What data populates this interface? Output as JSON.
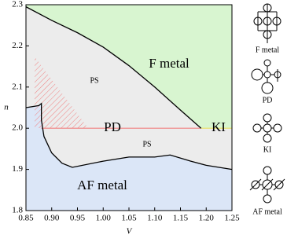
{
  "chart_data": {
    "type": "phase",
    "x_label": "V",
    "y_label": "n",
    "xlim": [
      0.85,
      1.25
    ],
    "ylim": [
      1.8,
      2.3
    ],
    "xticks": [
      {
        "value": 0.85,
        "label": "0.85"
      },
      {
        "value": 0.9,
        "label": "0.90"
      },
      {
        "value": 0.95,
        "label": "0.95"
      },
      {
        "value": 1.0,
        "label": "1.00"
      },
      {
        "value": 1.05,
        "label": "1.05"
      },
      {
        "value": 1.1,
        "label": "1.10"
      },
      {
        "value": 1.15,
        "label": "1.15"
      },
      {
        "value": 1.2,
        "label": "1.20"
      },
      {
        "value": 1.25,
        "label": "1.25"
      }
    ],
    "yticks": [
      1.8,
      1.9,
      {
        "value": 2.0,
        "label": "2.0"
      },
      2.1,
      2.2,
      2.3
    ],
    "upper_boundary": {
      "color": "#000000",
      "x": [
        0.85,
        0.9,
        0.95,
        1.0,
        1.05,
        1.1,
        1.15,
        1.19
      ],
      "values": [
        2.295,
        2.262,
        2.232,
        2.197,
        2.152,
        2.1,
        2.044,
        2.0
      ]
    },
    "lower_boundary": {
      "color": "#000000",
      "x": [
        0.85,
        0.875,
        0.88,
        0.88,
        0.885,
        0.9,
        0.92,
        0.94,
        1.0,
        1.05,
        1.1,
        1.13,
        1.17,
        1.2,
        1.25
      ],
      "values": [
        2.05,
        2.055,
        2.06,
        2.02,
        1.98,
        1.94,
        1.915,
        1.905,
        1.92,
        1.93,
        1.93,
        1.935,
        1.92,
        1.91,
        1.9
      ]
    },
    "pd_line": {
      "color": "#f08080",
      "x": [
        0.88,
        1.19
      ],
      "values": [
        2.0,
        2.0
      ]
    },
    "ki_line": {
      "color": "#e8e060",
      "x": [
        1.19,
        1.25
      ],
      "values": [
        2.0,
        2.0
      ]
    },
    "region_colors": {
      "F metal": "#d8f5d0",
      "PS": "#ececec",
      "AF metal": "#dbe6f7"
    },
    "annotations": [
      "F metal",
      "PS",
      "PD",
      "PS",
      "KI",
      "AF metal"
    ],
    "diagram_labels": [
      "F metal",
      "PD",
      "KI",
      "AF metal"
    ]
  }
}
